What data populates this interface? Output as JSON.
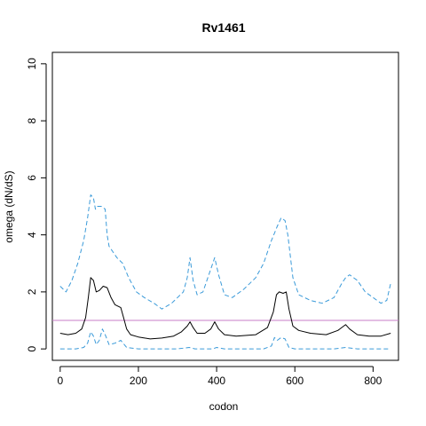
{
  "chart_data": {
    "type": "line",
    "title": "Rv1461",
    "xlabel": "codon",
    "ylabel": "omega (dN/dS)",
    "xlim": [
      -20,
      865
    ],
    "ylim": [
      -0.4,
      10.4
    ],
    "x_ticks": [
      0,
      200,
      400,
      600,
      800
    ],
    "y_ticks": [
      0,
      2,
      4,
      6,
      8,
      10
    ],
    "grid": false,
    "reference_line": {
      "y": 1,
      "color": "#C77CC7"
    },
    "series": [
      {
        "role": "estimate",
        "style": "solid",
        "color": "#000000",
        "x": [
          0,
          20,
          40,
          55,
          65,
          72,
          78,
          85,
          92,
          100,
          110,
          120,
          130,
          140,
          155,
          162,
          170,
          180,
          200,
          230,
          260,
          290,
          310,
          325,
          332,
          340,
          350,
          370,
          385,
          395,
          405,
          420,
          450,
          500,
          530,
          545,
          553,
          560,
          570,
          578,
          585,
          595,
          610,
          640,
          680,
          710,
          725,
          730,
          740,
          760,
          790,
          820,
          845
        ],
        "y": [
          0.55,
          0.5,
          0.55,
          0.7,
          1.1,
          1.8,
          2.5,
          2.4,
          2.0,
          2.05,
          2.2,
          2.15,
          1.8,
          1.55,
          1.45,
          1.1,
          0.7,
          0.5,
          0.42,
          0.35,
          0.38,
          0.45,
          0.6,
          0.8,
          0.95,
          0.75,
          0.55,
          0.55,
          0.7,
          0.95,
          0.7,
          0.5,
          0.45,
          0.5,
          0.75,
          1.3,
          1.9,
          2.0,
          1.95,
          2.0,
          1.4,
          0.8,
          0.65,
          0.55,
          0.5,
          0.65,
          0.8,
          0.85,
          0.7,
          0.5,
          0.45,
          0.45,
          0.55
        ]
      },
      {
        "role": "upper bound",
        "style": "dashed",
        "color": "#3A9AD9",
        "x": [
          0,
          15,
          30,
          45,
          60,
          70,
          78,
          85,
          90,
          95,
          105,
          115,
          120,
          125,
          135,
          145,
          160,
          175,
          195,
          215,
          240,
          260,
          285,
          300,
          315,
          325,
          332,
          340,
          350,
          365,
          380,
          390,
          395,
          405,
          420,
          440,
          470,
          500,
          520,
          540,
          555,
          565,
          575,
          582,
          595,
          610,
          640,
          670,
          700,
          720,
          730,
          740,
          760,
          780,
          800,
          820,
          835,
          845
        ],
        "y": [
          2.2,
          2.0,
          2.4,
          3.0,
          3.8,
          4.6,
          5.4,
          5.3,
          4.9,
          5.0,
          5.0,
          4.9,
          4.0,
          3.6,
          3.4,
          3.2,
          3.0,
          2.5,
          2.0,
          1.8,
          1.6,
          1.4,
          1.6,
          1.8,
          2.0,
          2.5,
          3.2,
          2.4,
          1.9,
          2.0,
          2.6,
          3.0,
          3.2,
          2.6,
          1.9,
          1.8,
          2.1,
          2.5,
          3.0,
          3.8,
          4.3,
          4.6,
          4.5,
          4.0,
          2.5,
          1.9,
          1.7,
          1.6,
          1.8,
          2.3,
          2.5,
          2.6,
          2.4,
          2.0,
          1.8,
          1.6,
          1.7,
          2.3
        ]
      },
      {
        "role": "lower bound",
        "style": "dashed",
        "color": "#3A9AD9",
        "x": [
          0,
          40,
          60,
          70,
          78,
          85,
          92,
          100,
          108,
          115,
          125,
          140,
          155,
          170,
          200,
          300,
          330,
          345,
          390,
          400,
          420,
          520,
          540,
          548,
          555,
          565,
          575,
          585,
          600,
          700,
          730,
          760,
          845
        ],
        "y": [
          0.0,
          0.0,
          0.05,
          0.2,
          0.6,
          0.45,
          0.15,
          0.3,
          0.7,
          0.5,
          0.15,
          0.2,
          0.3,
          0.05,
          0.0,
          0.0,
          0.05,
          0.0,
          0.0,
          0.05,
          0.0,
          0.0,
          0.1,
          0.4,
          0.3,
          0.4,
          0.35,
          0.05,
          0.0,
          0.0,
          0.05,
          0.0,
          0.0
        ]
      }
    ]
  }
}
